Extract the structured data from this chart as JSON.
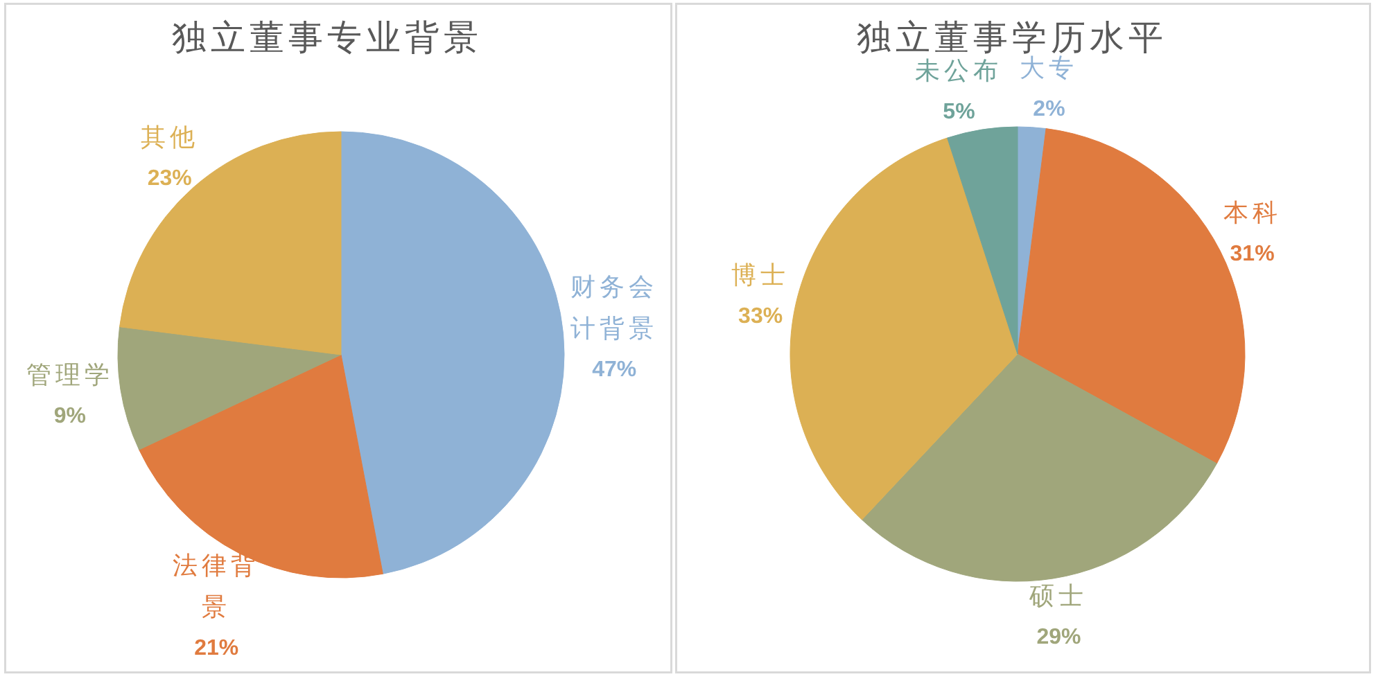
{
  "chart_data": [
    {
      "type": "pie",
      "title": "独立董事专业背景",
      "categories": [
        "财务会计背景",
        "法律背景",
        "管理学",
        "其他"
      ],
      "values": [
        47,
        21,
        9,
        23
      ],
      "value_labels": [
        "47%",
        "21%",
        "9%",
        "23%"
      ],
      "colors": [
        "#8fb2d6",
        "#e07b3f",
        "#a0a67b",
        "#dcb054"
      ]
    },
    {
      "type": "pie",
      "title": "独立董事学历水平",
      "categories": [
        "大专",
        "本科",
        "硕士",
        "博士",
        "未公布"
      ],
      "values": [
        2,
        31,
        29,
        33,
        5
      ],
      "value_labels": [
        "2%",
        "31%",
        "29%",
        "33%",
        "5%"
      ],
      "colors": [
        "#8fb2d6",
        "#e07b3f",
        "#a0a67b",
        "#dcb054",
        "#6fa39a"
      ]
    }
  ]
}
